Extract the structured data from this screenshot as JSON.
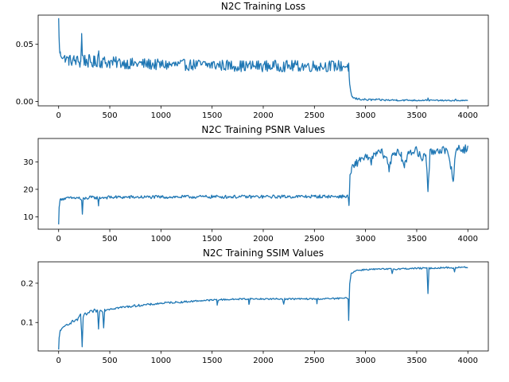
{
  "chart_data": [
    {
      "type": "line",
      "title": "N2C Training Loss",
      "xlabel": "",
      "ylabel": "",
      "xlim": [
        -200,
        4200
      ],
      "ylim": [
        -0.0038,
        0.0755
      ],
      "xticks": [
        0,
        500,
        1000,
        1500,
        2000,
        2500,
        3000,
        3500,
        4000
      ],
      "yticks": [
        0.0,
        0.05
      ],
      "ytick_labels": [
        "0.00",
        "0.05"
      ],
      "grid": false,
      "color": "#1f77b4",
      "series": [
        {
          "points": [
            [
              0,
              0.072
            ],
            [
              4,
              0.058
            ],
            [
              8,
              0.046
            ],
            [
              12,
              0.043
            ],
            [
              20,
              0.041
            ],
            [
              40,
              0.039
            ],
            [
              60,
              0.038
            ],
            [
              80,
              0.037
            ],
            [
              100,
              0.036
            ],
            [
              150,
              0.036
            ],
            [
              200,
              0.035
            ],
            [
              215,
              0.034
            ],
            [
              225,
              0.058
            ],
            [
              232,
              0.04
            ],
            [
              250,
              0.036
            ],
            [
              300,
              0.035
            ],
            [
              350,
              0.034
            ],
            [
              380,
              0.036
            ],
            [
              390,
              0.045
            ],
            [
              400,
              0.035
            ],
            [
              500,
              0.034
            ],
            [
              600,
              0.034
            ],
            [
              700,
              0.033
            ],
            [
              800,
              0.033
            ],
            [
              1000,
              0.032
            ],
            [
              1200,
              0.032
            ],
            [
              1500,
              0.032
            ],
            [
              1800,
              0.031
            ],
            [
              2000,
              0.031
            ],
            [
              2300,
              0.031
            ],
            [
              2600,
              0.031
            ],
            [
              2820,
              0.031
            ],
            [
              2835,
              0.03
            ],
            [
              2845,
              0.014
            ],
            [
              2855,
              0.008
            ],
            [
              2870,
              0.004
            ],
            [
              2900,
              0.0025
            ],
            [
              2950,
              0.002
            ],
            [
              3000,
              0.0015
            ],
            [
              3100,
              0.0015
            ],
            [
              3200,
              0.0012
            ],
            [
              3300,
              0.0012
            ],
            [
              3400,
              0.0011
            ],
            [
              3500,
              0.001
            ],
            [
              3600,
              0.0012
            ],
            [
              3610,
              0.0025
            ],
            [
              3620,
              0.001
            ],
            [
              3700,
              0.001
            ],
            [
              3800,
              0.0008
            ],
            [
              3870,
              0.0008
            ],
            [
              3880,
              0.0018
            ],
            [
              3890,
              0.0008
            ],
            [
              3950,
              0.0008
            ],
            [
              4000,
              0.0008
            ]
          ],
          "spread": [
            [
              0,
              0.002
            ],
            [
              100,
              0.005
            ],
            [
              300,
              0.006
            ],
            [
              600,
              0.005
            ],
            [
              1000,
              0.005
            ],
            [
              2000,
              0.005
            ],
            [
              2830,
              0.005
            ],
            [
              2850,
              0.001
            ],
            [
              4000,
              0.0004
            ]
          ]
        }
      ]
    },
    {
      "type": "line",
      "title": "N2C Training PSNR Values",
      "xlabel": "",
      "ylabel": "",
      "xlim": [
        -200,
        4200
      ],
      "ylim": [
        5.5,
        38.5
      ],
      "xticks": [
        0,
        500,
        1000,
        1500,
        2000,
        2500,
        3000,
        3500,
        4000
      ],
      "yticks": [
        10,
        20,
        30
      ],
      "ytick_labels": [
        "10",
        "20",
        "30"
      ],
      "grid": false,
      "color": "#1f77b4",
      "series": [
        {
          "points": [
            [
              0,
              7.0
            ],
            [
              5,
              14.0
            ],
            [
              15,
              16.0
            ],
            [
              30,
              16.5
            ],
            [
              100,
              16.8
            ],
            [
              200,
              16.9
            ],
            [
              225,
              16.0
            ],
            [
              232,
              10.5
            ],
            [
              240,
              16.5
            ],
            [
              300,
              17.0
            ],
            [
              380,
              17.0
            ],
            [
              390,
              14.5
            ],
            [
              400,
              17.0
            ],
            [
              500,
              17.1
            ],
            [
              1000,
              17.2
            ],
            [
              1500,
              17.3
            ],
            [
              2000,
              17.3
            ],
            [
              2500,
              17.4
            ],
            [
              2830,
              17.4
            ],
            [
              2838,
              14.0
            ],
            [
              2848,
              24.0
            ],
            [
              2860,
              27.0
            ],
            [
              2900,
              29.0
            ],
            [
              2950,
              31.0
            ],
            [
              3000,
              32.0
            ],
            [
              3050,
              30.0
            ],
            [
              3100,
              33.0
            ],
            [
              3150,
              33.5
            ],
            [
              3200,
              32.0
            ],
            [
              3230,
              27.0
            ],
            [
              3260,
              33.0
            ],
            [
              3300,
              33.5
            ],
            [
              3350,
              32.0
            ],
            [
              3380,
              28.0
            ],
            [
              3420,
              34.0
            ],
            [
              3500,
              34.0
            ],
            [
              3550,
              31.0
            ],
            [
              3590,
              33.0
            ],
            [
              3610,
              20.0
            ],
            [
              3630,
              33.0
            ],
            [
              3700,
              34.5
            ],
            [
              3750,
              34.5
            ],
            [
              3800,
              33.0
            ],
            [
              3840,
              28.0
            ],
            [
              3860,
              23.0
            ],
            [
              3880,
              34.0
            ],
            [
              3900,
              35.0
            ],
            [
              3950,
              34.5
            ],
            [
              4000,
              35.0
            ]
          ],
          "spread": [
            [
              0,
              0.5
            ],
            [
              300,
              0.6
            ],
            [
              2830,
              0.6
            ],
            [
              2850,
              1.5
            ],
            [
              3000,
              1.5
            ],
            [
              4000,
              1.6
            ]
          ]
        }
      ]
    },
    {
      "type": "line",
      "title": "N2C Training SSIM Values",
      "xlabel": "",
      "ylabel": "",
      "xlim": [
        -200,
        4200
      ],
      "ylim": [
        0.0275,
        0.2545
      ],
      "xticks": [
        0,
        500,
        1000,
        1500,
        2000,
        2500,
        3000,
        3500,
        4000
      ],
      "yticks": [
        0.1,
        0.2
      ],
      "ytick_labels": [
        "0.1",
        "0.2"
      ],
      "grid": false,
      "color": "#1f77b4",
      "series": [
        {
          "points": [
            [
              0,
              0.03
            ],
            [
              5,
              0.06
            ],
            [
              15,
              0.08
            ],
            [
              40,
              0.085
            ],
            [
              80,
              0.095
            ],
            [
              120,
              0.1
            ],
            [
              160,
              0.105
            ],
            [
              200,
              0.11
            ],
            [
              215,
              0.12
            ],
            [
              222,
              0.085
            ],
            [
              230,
              0.04
            ],
            [
              240,
              0.115
            ],
            [
              260,
              0.12
            ],
            [
              300,
              0.125
            ],
            [
              350,
              0.13
            ],
            [
              380,
              0.13
            ],
            [
              390,
              0.085
            ],
            [
              400,
              0.13
            ],
            [
              430,
              0.13
            ],
            [
              440,
              0.09
            ],
            [
              450,
              0.132
            ],
            [
              500,
              0.135
            ],
            [
              600,
              0.138
            ],
            [
              700,
              0.141
            ],
            [
              800,
              0.144
            ],
            [
              900,
              0.146
            ],
            [
              1000,
              0.149
            ],
            [
              1100,
              0.151
            ],
            [
              1200,
              0.152
            ],
            [
              1300,
              0.154
            ],
            [
              1400,
              0.156
            ],
            [
              1500,
              0.157
            ],
            [
              1545,
              0.158
            ],
            [
              1550,
              0.145
            ],
            [
              1560,
              0.158
            ],
            [
              1700,
              0.159
            ],
            [
              1800,
              0.16
            ],
            [
              1855,
              0.16
            ],
            [
              1860,
              0.145
            ],
            [
              1870,
              0.16
            ],
            [
              2000,
              0.16
            ],
            [
              2100,
              0.16
            ],
            [
              2190,
              0.16
            ],
            [
              2200,
              0.146
            ],
            [
              2210,
              0.16
            ],
            [
              2300,
              0.16
            ],
            [
              2500,
              0.16
            ],
            [
              2520,
              0.16
            ],
            [
              2525,
              0.148
            ],
            [
              2530,
              0.16
            ],
            [
              2700,
              0.161
            ],
            [
              2830,
              0.162
            ],
            [
              2835,
              0.105
            ],
            [
              2845,
              0.2
            ],
            [
              2860,
              0.225
            ],
            [
              2900,
              0.232
            ],
            [
              3000,
              0.235
            ],
            [
              3200,
              0.236
            ],
            [
              3250,
              0.236
            ],
            [
              3260,
              0.225
            ],
            [
              3270,
              0.236
            ],
            [
              3500,
              0.238
            ],
            [
              3600,
              0.238
            ],
            [
              3610,
              0.175
            ],
            [
              3620,
              0.238
            ],
            [
              3800,
              0.24
            ],
            [
              3860,
              0.239
            ],
            [
              3870,
              0.228
            ],
            [
              3880,
              0.24
            ],
            [
              4000,
              0.241
            ]
          ],
          "spread": [
            [
              0,
              0.002
            ],
            [
              200,
              0.005
            ],
            [
              600,
              0.003
            ],
            [
              1500,
              0.002
            ],
            [
              2830,
              0.002
            ],
            [
              2850,
              0.002
            ],
            [
              4000,
              0.002
            ]
          ]
        }
      ]
    }
  ]
}
